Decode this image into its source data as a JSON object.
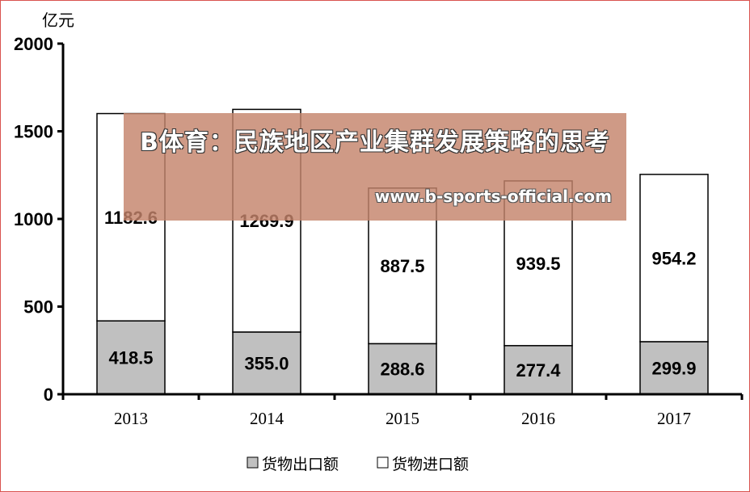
{
  "chart_data": {
    "type": "bar",
    "stacked": true,
    "unit_label": "亿元",
    "categories": [
      "2013",
      "2014",
      "2015",
      "2016",
      "2017"
    ],
    "series": [
      {
        "name": "货物出口额",
        "values": [
          418.5,
          355.0,
          288.6,
          277.4,
          299.9
        ],
        "color": "#c0c0c0"
      },
      {
        "name": "货物进口额",
        "values": [
          1182.6,
          1269.9,
          887.5,
          939.5,
          954.2
        ],
        "color": "#ffffff"
      }
    ],
    "ylim": [
      0,
      2000
    ],
    "yticks": [
      "0",
      "500",
      "1000",
      "1500",
      "2000"
    ],
    "grid": false,
    "legend_position": "bottom"
  },
  "watermark": {
    "title": "B体育：民族地区产业集群发展策略的思考",
    "url": "www.b-sports-official.com"
  }
}
